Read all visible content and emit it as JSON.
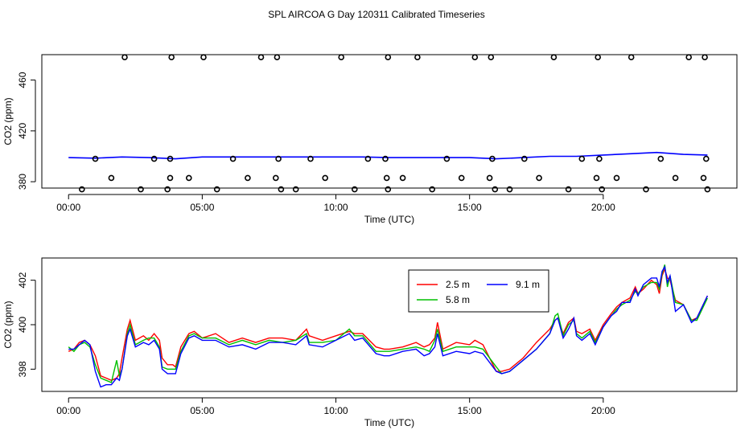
{
  "title": "SPL AIRCOA G  Day 120311  Calibrated Timeseries",
  "chart_data": [
    {
      "type": "scatter+line",
      "xlabel": "Time (UTC)",
      "ylabel": "CO2 (ppm)",
      "xlim": [
        -1,
        25
      ],
      "ylim": [
        375,
        480
      ],
      "x_ticks": [
        0,
        5,
        10,
        15,
        20
      ],
      "x_tick_labels": [
        "00:00",
        "05:00",
        "10:00",
        "15:00",
        "20:00"
      ],
      "y_ticks": [
        380,
        420,
        460
      ],
      "y_tick_labels": [
        "380",
        "420",
        "460"
      ],
      "line": {
        "name": "CO2",
        "color": "#0000ff",
        "x": [
          0,
          1,
          2,
          3,
          4,
          5,
          6,
          7,
          8,
          9,
          10,
          11,
          12,
          13,
          14,
          15,
          16,
          17,
          18,
          19,
          20,
          21,
          22,
          23,
          23.9
        ],
        "y": [
          399,
          398.5,
          399.5,
          399,
          398,
          399.5,
          399.5,
          399.5,
          399.5,
          399.5,
          399.5,
          399.5,
          399,
          399,
          399,
          399,
          398,
          399,
          400,
          400,
          401,
          402,
          403,
          401.5,
          401
        ]
      },
      "points": {
        "x": [
          0.5,
          1,
          1.6,
          2.1,
          2.7,
          3.2,
          3.7,
          3.8,
          3.8,
          3.85,
          4.5,
          5.05,
          5.55,
          6.15,
          6.7,
          7.2,
          7.75,
          7.8,
          7.85,
          7.95,
          8.5,
          9.05,
          9.6,
          10.2,
          10.7,
          11.2,
          11.85,
          11.9,
          11.95,
          11.95,
          12.5,
          13.05,
          13.6,
          14.15,
          14.7,
          15.2,
          15.75,
          15.8,
          15.85,
          15.95,
          16.5,
          17.05,
          17.6,
          18.15,
          18.7,
          19.2,
          19.75,
          19.8,
          19.85,
          19.95,
          20.5,
          21.05,
          21.6,
          22.15,
          22.7,
          23.2,
          23.75,
          23.8,
          23.85,
          23.9
        ],
        "y": [
          374,
          398,
          383,
          478,
          374,
          398,
          374,
          398,
          383,
          478,
          383,
          478,
          374,
          398,
          383,
          478,
          383,
          478,
          398,
          374,
          374,
          398,
          383,
          478,
          374,
          398,
          398,
          383,
          374,
          478,
          383,
          478,
          374,
          398,
          383,
          478,
          383,
          478,
          398,
          374,
          374,
          398,
          383,
          478,
          374,
          398,
          383,
          478,
          398,
          374,
          383,
          478,
          374,
          398,
          383,
          478,
          383,
          478,
          398,
          374
        ]
      }
    },
    {
      "type": "line",
      "xlabel": "Time (UTC)",
      "ylabel": "CO2 (ppm)",
      "xlim": [
        -1,
        25
      ],
      "ylim": [
        397,
        403
      ],
      "x_ticks": [
        0,
        5,
        10,
        15,
        20
      ],
      "x_tick_labels": [
        "00:00",
        "05:00",
        "10:00",
        "15:00",
        "20:00"
      ],
      "y_ticks": [
        398,
        400,
        402
      ],
      "y_tick_labels": [
        "398",
        "400",
        "402"
      ],
      "legend": {
        "position": "top-center",
        "columns": 2
      },
      "series": [
        {
          "name": "2.5 m",
          "color": "#ff0000",
          "x": [
            0,
            0.2,
            0.4,
            0.6,
            0.8,
            1.0,
            1.2,
            1.4,
            1.6,
            1.8,
            1.9,
            2.0,
            2.2,
            2.3,
            2.5,
            2.8,
            3.0,
            3.2,
            3.4,
            3.5,
            3.7,
            3.9,
            4.0,
            4.2,
            4.5,
            4.7,
            5.0,
            5.5,
            6.0,
            6.5,
            7.0,
            7.5,
            8.0,
            8.5,
            8.9,
            9.0,
            9.5,
            10.0,
            10.5,
            10.7,
            11.0,
            11.5,
            11.8,
            12.0,
            12.5,
            13.0,
            13.3,
            13.5,
            13.7,
            13.8,
            14.0,
            14.5,
            15.0,
            15.2,
            15.5,
            16.0,
            16.2,
            16.5,
            17.0,
            17.5,
            18.0,
            18.2,
            18.3,
            18.5,
            18.7,
            18.9,
            19.0,
            19.2,
            19.5,
            19.7,
            20.0,
            20.3,
            20.5,
            20.7,
            21.0,
            21.2,
            21.3,
            21.5,
            21.8,
            22.0,
            22.1,
            22.2,
            22.3,
            22.4,
            22.5,
            22.7,
            23.0,
            23.3,
            23.5,
            23.9
          ],
          "values": [
            398.8,
            398.9,
            399.2,
            399.3,
            399.1,
            398.6,
            397.7,
            397.6,
            397.5,
            397.6,
            397.8,
            398.5,
            399.8,
            400.2,
            399.3,
            399.5,
            399.3,
            399.6,
            399.3,
            398.5,
            398.2,
            398.2,
            398.1,
            399.0,
            399.6,
            399.7,
            399.4,
            399.6,
            399.2,
            399.4,
            399.2,
            399.4,
            399.4,
            399.3,
            399.8,
            399.5,
            399.3,
            399.5,
            399.7,
            399.6,
            399.6,
            399.0,
            398.9,
            398.9,
            399.0,
            399.2,
            399.0,
            399.1,
            399.4,
            400.1,
            398.9,
            399.2,
            399.1,
            399.3,
            399.1,
            397.9,
            397.9,
            398.0,
            398.5,
            399.2,
            399.8,
            400.2,
            400.3,
            399.6,
            400.1,
            400.3,
            399.7,
            399.6,
            399.8,
            399.3,
            400.0,
            400.5,
            400.8,
            401.0,
            401.2,
            401.7,
            401.4,
            401.6,
            402.0,
            401.8,
            401.4,
            402.2,
            402.5,
            402.1,
            402.0,
            401.1,
            400.9,
            400.2,
            400.3,
            401.3
          ]
        },
        {
          "name": "5.8 m",
          "color": "#00c000",
          "x": [
            0,
            0.2,
            0.4,
            0.6,
            0.8,
            1.0,
            1.2,
            1.4,
            1.6,
            1.8,
            1.9,
            2.0,
            2.2,
            2.3,
            2.5,
            2.8,
            3.0,
            3.2,
            3.4,
            3.5,
            3.7,
            3.9,
            4.0,
            4.2,
            4.5,
            4.7,
            5.0,
            5.5,
            6.0,
            6.5,
            7.0,
            7.5,
            8.0,
            8.5,
            8.9,
            9.0,
            9.5,
            10.0,
            10.5,
            10.7,
            11.0,
            11.5,
            11.8,
            12.0,
            12.5,
            13.0,
            13.3,
            13.5,
            13.7,
            13.8,
            14.0,
            14.5,
            15.0,
            15.2,
            15.5,
            16.0,
            16.2,
            16.5,
            17.0,
            17.5,
            18.0,
            18.2,
            18.3,
            18.5,
            18.7,
            18.9,
            19.0,
            19.2,
            19.5,
            19.7,
            20.0,
            20.3,
            20.5,
            20.7,
            21.0,
            21.2,
            21.3,
            21.5,
            21.8,
            22.0,
            22.1,
            22.2,
            22.3,
            22.4,
            22.5,
            22.7,
            23.0,
            23.3,
            23.5,
            23.9
          ],
          "values": [
            399.0,
            398.8,
            399.1,
            399.2,
            399.0,
            398.2,
            397.6,
            397.5,
            397.4,
            398.4,
            397.7,
            398.0,
            399.6,
            400.0,
            399.1,
            399.3,
            399.4,
            399.4,
            399.0,
            398.1,
            398.0,
            398.0,
            398.0,
            398.8,
            399.5,
            399.6,
            399.4,
            399.4,
            399.1,
            399.3,
            399.1,
            399.3,
            399.2,
            399.3,
            399.6,
            399.2,
            399.2,
            399.3,
            399.8,
            399.5,
            399.5,
            398.8,
            398.8,
            398.8,
            398.9,
            399.0,
            398.9,
            398.8,
            399.3,
            399.8,
            398.8,
            399.0,
            399.0,
            399.0,
            398.9,
            398.1,
            397.8,
            397.9,
            398.4,
            398.9,
            399.6,
            400.4,
            400.5,
            399.5,
            400.0,
            400.2,
            399.6,
            399.4,
            399.7,
            399.2,
            399.9,
            400.4,
            400.7,
            400.9,
            401.1,
            401.5,
            401.4,
            401.7,
            401.9,
            401.9,
            401.6,
            402.3,
            402.7,
            401.7,
            402.2,
            401.0,
            400.9,
            400.2,
            400.2,
            401.2
          ]
        },
        {
          "name": "9.1 m",
          "color": "#0000ff",
          "x": [
            0,
            0.2,
            0.4,
            0.6,
            0.8,
            1.0,
            1.2,
            1.4,
            1.6,
            1.8,
            1.9,
            2.0,
            2.2,
            2.3,
            2.5,
            2.8,
            3.0,
            3.2,
            3.4,
            3.5,
            3.7,
            3.9,
            4.0,
            4.2,
            4.5,
            4.7,
            5.0,
            5.5,
            6.0,
            6.5,
            7.0,
            7.5,
            8.0,
            8.5,
            8.9,
            9.0,
            9.5,
            10.0,
            10.5,
            10.7,
            11.0,
            11.5,
            11.8,
            12.0,
            12.5,
            13.0,
            13.3,
            13.5,
            13.7,
            13.8,
            14.0,
            14.5,
            15.0,
            15.2,
            15.5,
            16.0,
            16.2,
            16.5,
            17.0,
            17.5,
            18.0,
            18.2,
            18.3,
            18.5,
            18.7,
            18.9,
            19.0,
            19.2,
            19.5,
            19.7,
            20.0,
            20.3,
            20.5,
            20.7,
            21.0,
            21.2,
            21.3,
            21.5,
            21.8,
            22.0,
            22.1,
            22.2,
            22.3,
            22.4,
            22.5,
            22.7,
            23.0,
            23.3,
            23.5,
            23.9
          ],
          "values": [
            398.9,
            398.9,
            399.1,
            399.3,
            399.1,
            397.9,
            397.2,
            397.3,
            397.3,
            397.6,
            397.5,
            398.0,
            399.5,
            399.8,
            399.0,
            399.2,
            399.1,
            399.3,
            398.9,
            398.0,
            397.8,
            397.8,
            397.8,
            398.7,
            399.4,
            399.5,
            399.3,
            399.3,
            399.0,
            399.1,
            398.9,
            399.2,
            399.2,
            399.1,
            399.5,
            399.1,
            399.0,
            399.3,
            399.6,
            399.3,
            399.4,
            398.7,
            398.6,
            398.6,
            398.8,
            398.9,
            398.6,
            398.7,
            399.0,
            399.6,
            398.6,
            398.8,
            398.7,
            398.8,
            398.7,
            397.9,
            397.8,
            397.9,
            398.4,
            398.9,
            399.6,
            400.2,
            400.3,
            399.4,
            399.8,
            400.3,
            399.5,
            399.3,
            399.6,
            399.1,
            399.9,
            400.4,
            400.6,
            401.0,
            401.0,
            401.6,
            401.3,
            401.8,
            402.1,
            402.1,
            401.7,
            402.4,
            402.6,
            401.9,
            402.2,
            400.6,
            400.9,
            400.1,
            400.3,
            401.3
          ]
        }
      ]
    }
  ]
}
